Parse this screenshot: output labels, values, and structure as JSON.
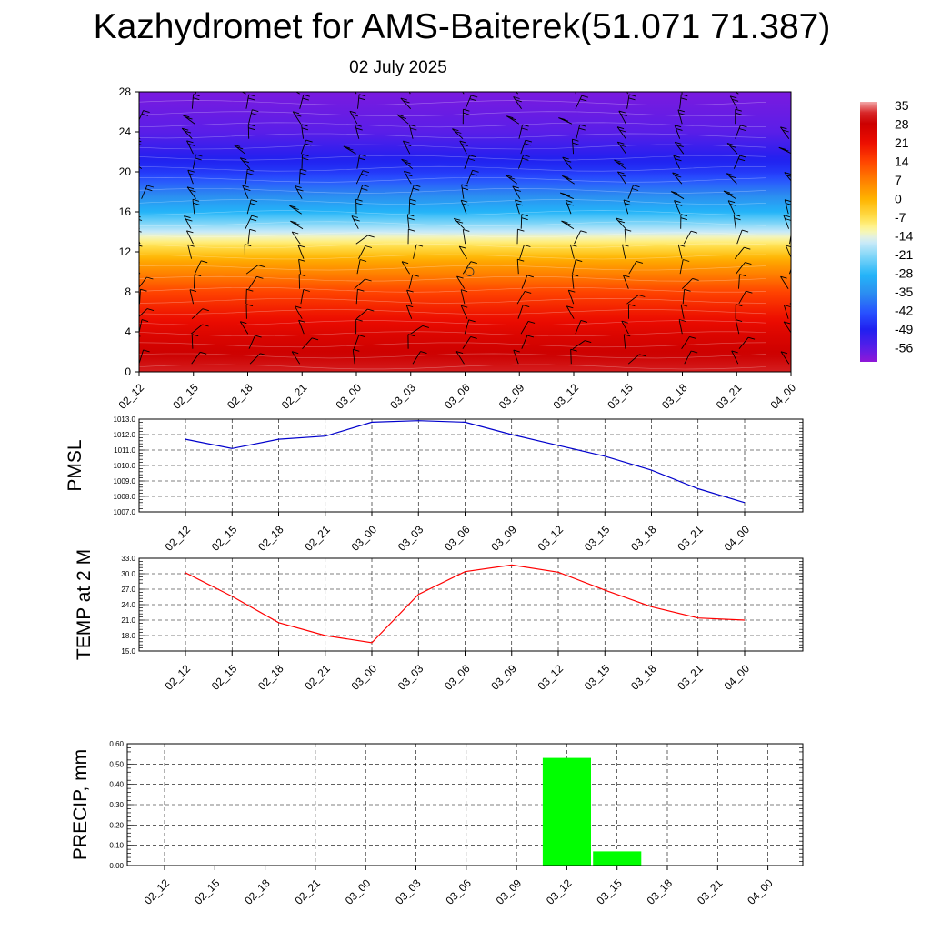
{
  "header": {
    "title": "Kazhydromet for AMS-Baiterek(51.071 71.387)",
    "date": "02 July 2025"
  },
  "time_labels": [
    "02_12",
    "02_15",
    "02_18",
    "02_21",
    "03_00",
    "03_03",
    "03_06",
    "03_09",
    "03_12",
    "03_15",
    "03_18",
    "03_21",
    "04_00"
  ],
  "chart_data": [
    {
      "type": "heatmap",
      "title": "",
      "xlabel": "",
      "ylabel": "",
      "x": [
        "02_12",
        "02_15",
        "02_18",
        "02_21",
        "03_00",
        "03_03",
        "03_06",
        "03_09",
        "03_12",
        "03_15",
        "03_18",
        "03_21",
        "04_00"
      ],
      "ylim": [
        0,
        28
      ],
      "yticks": [
        0,
        4,
        8,
        12,
        16,
        20,
        24,
        28
      ],
      "colorbar": {
        "labels": [
          "35",
          "28",
          "21",
          "14",
          "7",
          "0",
          "-7",
          "-14",
          "-21",
          "-28",
          "-35",
          "-42",
          "-49",
          "-56"
        ],
        "range": [
          -60,
          36
        ]
      },
      "temperature_profile": [
        {
          "height": 0,
          "temp": 31
        },
        {
          "height": 4,
          "temp": 24
        },
        {
          "height": 8,
          "temp": 14
        },
        {
          "height": 11,
          "temp": 2
        },
        {
          "height": 13.3,
          "temp": -11
        },
        {
          "height": 14,
          "temp": -16
        },
        {
          "height": 16,
          "temp": -28
        },
        {
          "height": 20,
          "temp": -45
        },
        {
          "height": 24,
          "temp": -55
        },
        {
          "height": 28,
          "temp": -58
        }
      ],
      "wind_barbs": true,
      "grid": false
    },
    {
      "type": "line",
      "ylabel": "PMSL",
      "x": [
        "02_12",
        "02_15",
        "02_18",
        "02_21",
        "03_00",
        "03_03",
        "03_06",
        "03_09",
        "03_12",
        "03_15",
        "03_18",
        "03_21",
        "04_00"
      ],
      "series": [
        {
          "color": "#0000cc",
          "values": [
            1011.7,
            1011.1,
            1011.7,
            1011.9,
            1012.8,
            1012.9,
            1012.8,
            1012.0,
            1011.3,
            1010.6,
            1009.7,
            1008.5,
            1007.6
          ]
        }
      ],
      "ylim": [
        1007.0,
        1013.0
      ],
      "yticks": [
        "1007.0",
        "1008.0",
        "1009.0",
        "1010.0",
        "1011.0",
        "1012.0",
        "1013.0"
      ],
      "grid": true
    },
    {
      "type": "line",
      "ylabel": "TEMP at 2 M",
      "x": [
        "02_12",
        "02_15",
        "02_18",
        "02_21",
        "03_00",
        "03_03",
        "03_06",
        "03_09",
        "03_12",
        "03_15",
        "03_18",
        "03_21",
        "04_00"
      ],
      "series": [
        {
          "color": "#ff0000",
          "values": [
            30.2,
            25.6,
            20.5,
            18.0,
            16.6,
            26.0,
            30.4,
            31.7,
            30.3,
            26.8,
            23.6,
            21.4,
            21.0
          ]
        }
      ],
      "ylim": [
        15.0,
        33.0
      ],
      "yticks": [
        "15.0",
        "18.0",
        "21.0",
        "24.0",
        "27.0",
        "30.0",
        "33.0"
      ],
      "grid": true
    },
    {
      "type": "bar",
      "ylabel": "PRECIP, mm",
      "x": [
        "02_12",
        "02_15",
        "02_18",
        "02_21",
        "03_00",
        "03_03",
        "03_06",
        "03_09",
        "03_12",
        "03_15",
        "03_18",
        "03_21",
        "04_00"
      ],
      "series": [
        {
          "color": "#00ff00",
          "values": [
            0,
            0,
            0,
            0,
            0,
            0,
            0,
            0,
            0.53,
            0.07,
            0,
            0,
            0
          ]
        }
      ],
      "ylim": [
        0,
        0.6
      ],
      "yticks": [
        "0.00",
        "0.10",
        "0.20",
        "0.30",
        "0.40",
        "0.50",
        "0.60"
      ],
      "grid": true
    }
  ]
}
